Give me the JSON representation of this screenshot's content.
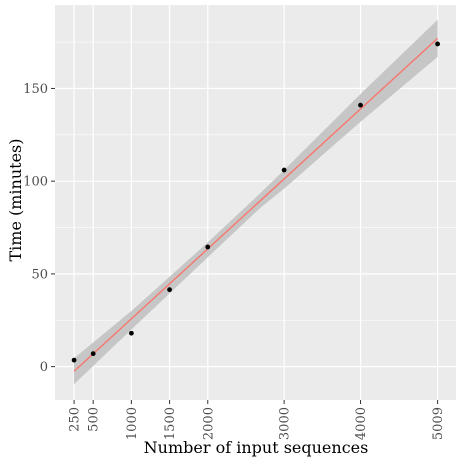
{
  "chart_data": {
    "type": "scatter",
    "xlabel": "Number of input sequences",
    "ylabel": "Time (minutes)",
    "x_ticks": [
      250,
      500,
      1000,
      1500,
      2000,
      3000,
      4000,
      5009
    ],
    "y_ticks": [
      0,
      50,
      100,
      150
    ],
    "xlim": [
      0,
      5250
    ],
    "ylim": [
      -18,
      195
    ],
    "points": [
      {
        "x": 250,
        "y": 3.5
      },
      {
        "x": 500,
        "y": 7
      },
      {
        "x": 1000,
        "y": 18
      },
      {
        "x": 1500,
        "y": 41.5
      },
      {
        "x": 2000,
        "y": 64.5
      },
      {
        "x": 3000,
        "y": 106
      },
      {
        "x": 4000,
        "y": 141
      },
      {
        "x": 5009,
        "y": 174
      }
    ],
    "fit_line": {
      "x": [
        250,
        5009
      ],
      "y": [
        -2.5,
        177
      ]
    },
    "confidence_band": {
      "x": [
        250,
        1000,
        2000,
        2700,
        3000,
        4000,
        5009
      ],
      "lower": [
        -9.5,
        20,
        59,
        86,
        96,
        132,
        167
      ],
      "upper": [
        4.5,
        30,
        67,
        94,
        106,
        147,
        187
      ]
    },
    "grid": true,
    "colors": {
      "panel": "#ebebeb",
      "grid": "#ffffff",
      "band": "#c6c6c6",
      "line": "#f8766d",
      "point": "#000000"
    }
  }
}
